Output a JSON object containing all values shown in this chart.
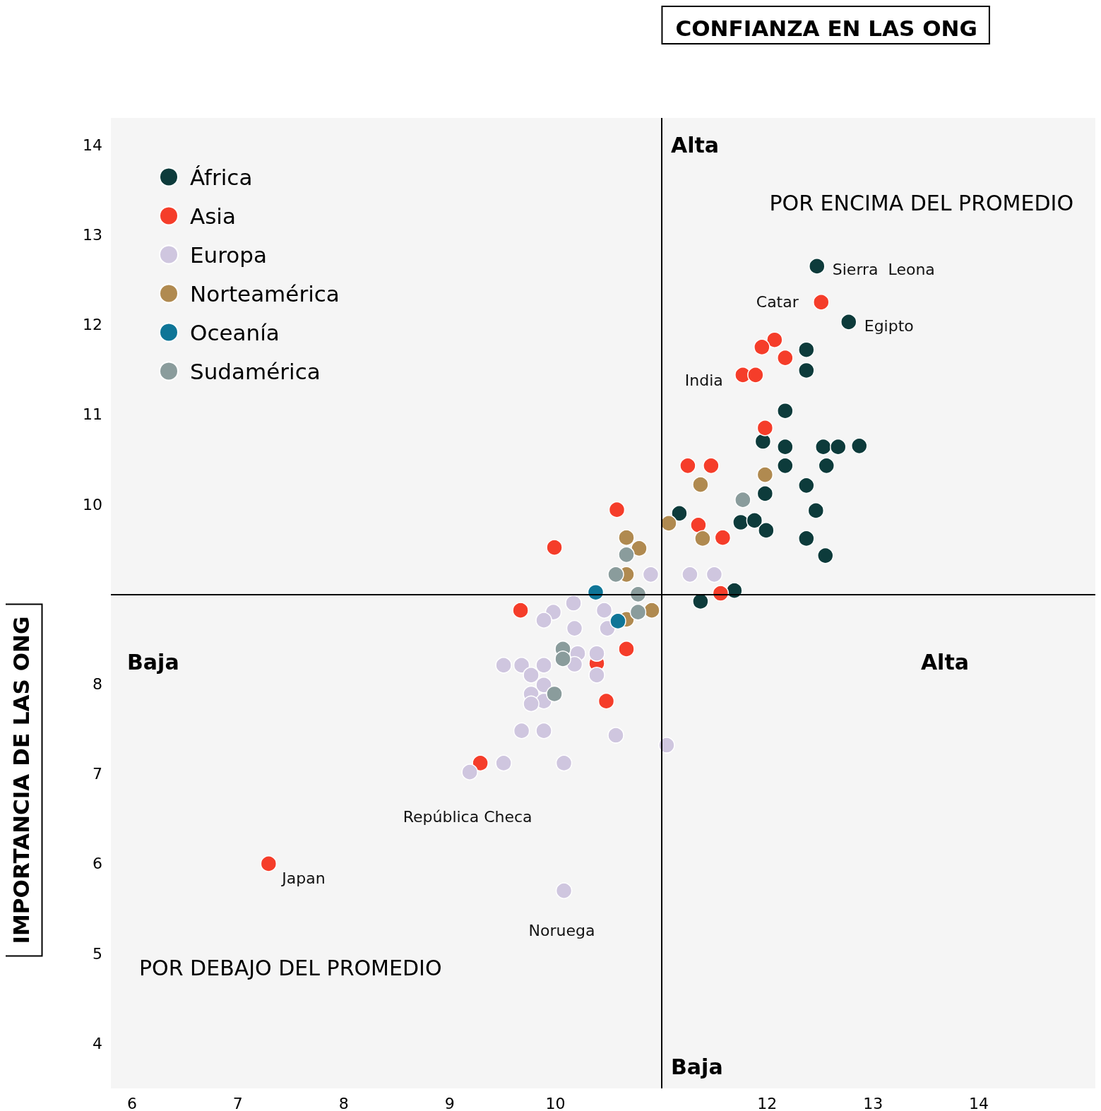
{
  "chart_data": {
    "type": "scatter",
    "xlabel": "CONFIANZA EN LAS ONG",
    "ylabel": "IMPORTANCIA DE LAS ONG",
    "xlim": [
      5.8,
      15.1
    ],
    "ylim": [
      3.5,
      14.3
    ],
    "xticks": [
      6,
      7,
      8,
      9,
      10,
      12,
      13,
      14
    ],
    "yticks": [
      4,
      5,
      6,
      7,
      8,
      10,
      11,
      12,
      13,
      14
    ],
    "grid": false,
    "legend": "top left",
    "marker": "circle",
    "ref_lines": [
      {
        "axis": "x",
        "value": 11,
        "color": "#000000"
      },
      {
        "axis": "y",
        "value": 9,
        "color": "#000000"
      }
    ],
    "series": [
      {
        "name": "África",
        "color": "#0d3b3b",
        "x": [
          12.47,
          12.77,
          12.37,
          12.37,
          12.17,
          11.96,
          12.17,
          12.53,
          12.67,
          12.87,
          12.17,
          12.56,
          12.37,
          11.98,
          11.17,
          11.75,
          11.88,
          11.99,
          12.46,
          12.37,
          12.55,
          11.69,
          11.37
        ],
        "values": [
          12.65,
          12.03,
          11.72,
          11.49,
          11.04,
          10.7,
          10.64,
          10.64,
          10.64,
          10.65,
          10.43,
          10.43,
          10.21,
          10.12,
          9.9,
          9.8,
          9.82,
          9.71,
          9.93,
          9.62,
          9.43,
          9.04,
          8.92
        ]
      },
      {
        "name": "Asia",
        "color": "#f53d2a",
        "x": [
          12.51,
          12.07,
          11.95,
          12.17,
          11.77,
          11.89,
          11.98,
          11.25,
          11.47,
          10.58,
          11.35,
          11.58,
          9.99,
          11.56,
          9.67,
          10.67,
          10.39,
          10.48,
          9.29,
          7.29
        ],
        "values": [
          12.25,
          11.83,
          11.75,
          11.63,
          11.44,
          11.44,
          10.85,
          10.43,
          10.43,
          9.94,
          9.77,
          9.63,
          9.52,
          9.01,
          8.82,
          8.39,
          8.23,
          7.81,
          7.12,
          6.0
        ]
      },
      {
        "name": "Europa",
        "color": "#cfc6df",
        "x": [
          10.9,
          11.27,
          11.5,
          10.17,
          9.98,
          9.89,
          10.46,
          10.18,
          10.49,
          10.21,
          10.39,
          10.18,
          9.51,
          9.68,
          9.89,
          9.77,
          10.39,
          9.89,
          9.77,
          9.89,
          9.77,
          9.68,
          9.89,
          10.57,
          11.05,
          9.51,
          10.08,
          9.19,
          10.08
        ],
        "values": [
          9.22,
          9.22,
          9.22,
          8.9,
          8.8,
          8.71,
          8.82,
          8.62,
          8.62,
          8.34,
          8.34,
          8.22,
          8.21,
          8.21,
          8.21,
          8.1,
          8.1,
          7.99,
          7.89,
          7.81,
          7.78,
          7.48,
          7.48,
          7.43,
          7.32,
          7.12,
          7.12,
          7.02,
          5.7
        ]
      },
      {
        "name": "Norteamérica",
        "color": "#b08a50",
        "x": [
          11.98,
          11.37,
          11.07,
          10.67,
          10.79,
          11.39,
          10.67,
          10.91,
          10.67
        ],
        "values": [
          10.33,
          10.22,
          9.79,
          9.63,
          9.51,
          9.62,
          9.22,
          8.82,
          8.72
        ]
      },
      {
        "name": "Oceanía",
        "color": "#0e7597",
        "x": [
          10.38,
          10.59
        ],
        "values": [
          9.02,
          8.7
        ]
      },
      {
        "name": "Sudamérica",
        "color": "#8a9c9c",
        "x": [
          11.77,
          10.67,
          10.57,
          10.78,
          10.78,
          10.07,
          10.07,
          9.99
        ],
        "values": [
          10.05,
          9.44,
          9.22,
          9.0,
          8.8,
          8.39,
          8.28,
          7.89
        ]
      }
    ],
    "annotations": [
      "Alta",
      "Baja",
      "Baja",
      "Alta",
      "POR ENCIMA DEL PROMEDIO",
      "POR DEBAJO DEL PROMEDIO",
      {
        "text": "Sierra  Leona",
        "x": 12.47,
        "y": 12.65
      },
      {
        "text": "Catar",
        "x": 12.51,
        "y": 12.25
      },
      {
        "text": "Egipto",
        "x": 12.77,
        "y": 12.03
      },
      {
        "text": "India",
        "x": 11.77,
        "y": 11.44
      },
      {
        "text": "República Checa",
        "x": 9.19,
        "y": 7.02
      },
      {
        "text": "Japan",
        "x": 7.29,
        "y": 6.0
      },
      {
        "text": "Noruega",
        "x": 10.08,
        "y": 5.7
      }
    ]
  }
}
